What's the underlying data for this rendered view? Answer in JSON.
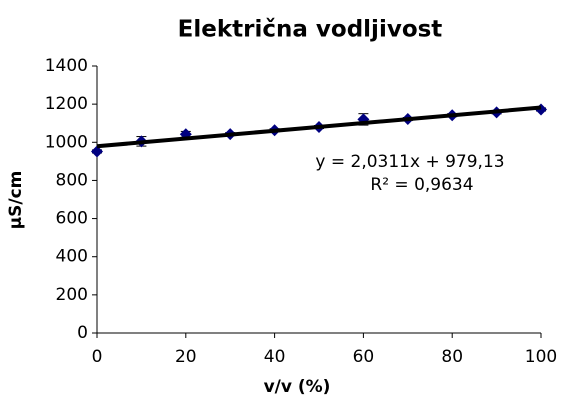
{
  "chart_data": {
    "type": "scatter",
    "title": "Električna vodljivost",
    "x_label": "v/v (%)",
    "y_label": "µS/cm",
    "series": [
      {
        "name": "Električna vodljivost",
        "color": "#000080",
        "x": [
          0,
          10,
          20,
          30,
          40,
          50,
          60,
          70,
          80,
          90,
          100
        ],
        "values": [
          952,
          1005,
          1042,
          1043,
          1063,
          1080,
          1120,
          1122,
          1142,
          1157,
          1172
        ],
        "errors": [
          8,
          25,
          15,
          8,
          8,
          8,
          30,
          8,
          8,
          8,
          8
        ]
      }
    ],
    "trendline": {
      "slope": 2.0311,
      "intercept": 979.13,
      "color": "#000000",
      "equation": "y = 2,0311x + 979,13",
      "r_squared": "R² = 0,9634"
    },
    "xlim": [
      0,
      100
    ],
    "xticks": [
      0,
      20,
      40,
      60,
      80,
      100
    ],
    "ylim": [
      0,
      1400
    ],
    "yticks": [
      0,
      200,
      400,
      600,
      800,
      1000,
      1200,
      1400
    ],
    "grid": false
  }
}
